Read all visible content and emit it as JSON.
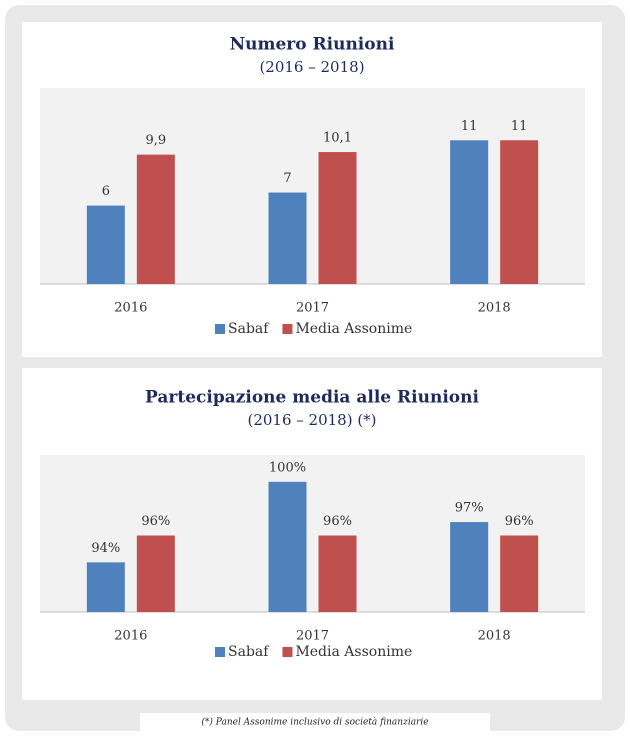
{
  "chart_data": [
    {
      "type": "bar",
      "title": "Numero Riunioni",
      "subtitle": "(2016 – 2018)",
      "categories": [
        "2016",
        "2017",
        "2018"
      ],
      "series": [
        {
          "name": "Sabaf",
          "color": "#4f81bd",
          "values": [
            6,
            7,
            11
          ]
        },
        {
          "name": "Media Assonime",
          "color": "#c0504d",
          "values": [
            9.9,
            10.1,
            11
          ],
          "value_labels": [
            "9,9",
            "10,1",
            "11"
          ]
        }
      ],
      "ylim": [
        0,
        15
      ],
      "legend": "bottom"
    },
    {
      "type": "bar",
      "title": "Partecipazione media alle Riunioni",
      "subtitle": "(2016 – 2018) (*)",
      "categories": [
        "2016",
        "2017",
        "2018"
      ],
      "series": [
        {
          "name": "Sabaf",
          "color": "#4f81bd",
          "values": [
            94,
            100,
            97
          ],
          "value_labels": [
            "94%",
            "100%",
            "97%"
          ]
        },
        {
          "name": "Media Assonime",
          "color": "#c0504d",
          "values": [
            96,
            96,
            96
          ],
          "value_labels": [
            "96%",
            "96%",
            "96%"
          ]
        }
      ],
      "ylim": [
        90.3,
        102
      ],
      "legend": "bottom"
    }
  ],
  "footnote": "(*) Panel Assonime inclusivo di società finanziarie"
}
